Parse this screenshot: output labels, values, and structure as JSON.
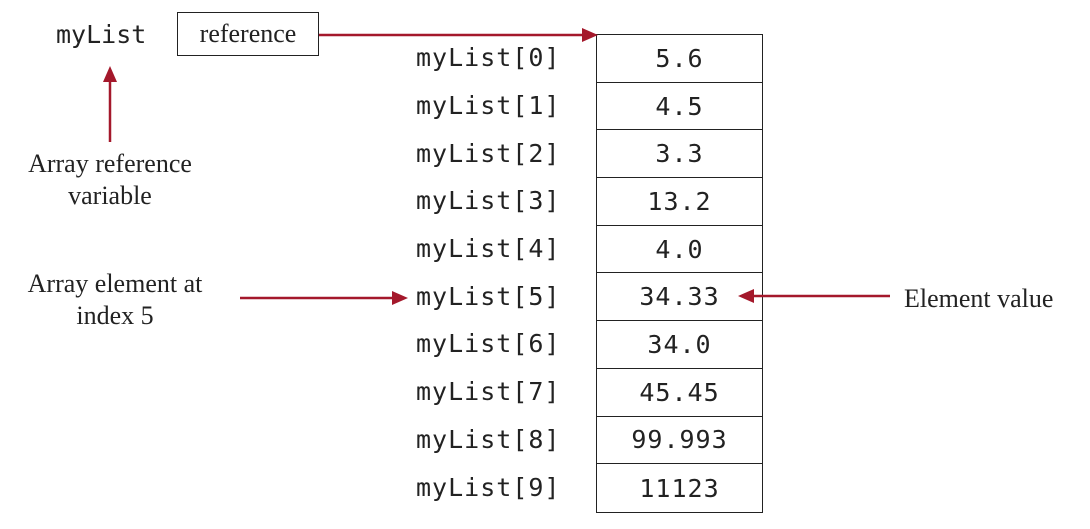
{
  "variable": {
    "name": "myList",
    "reference_label": "reference"
  },
  "labels": {
    "ref_var_line1": "Array reference",
    "ref_var_line2": "variable",
    "elem_at_line1": "Array element at",
    "elem_at_line2": "index 5",
    "elem_value": "Element value"
  },
  "array": {
    "indices": [
      "myList[0]",
      "myList[1]",
      "myList[2]",
      "myList[3]",
      "myList[4]",
      "myList[5]",
      "myList[6]",
      "myList[7]",
      "myList[8]",
      "myList[9]"
    ],
    "values": [
      "5.6",
      "4.5",
      "3.3",
      "13.2",
      "4.0",
      "34.33",
      "34.0",
      "45.45",
      "99.993",
      "11123"
    ]
  },
  "colors": {
    "arrow": "#a4182b",
    "text": "#222222"
  }
}
